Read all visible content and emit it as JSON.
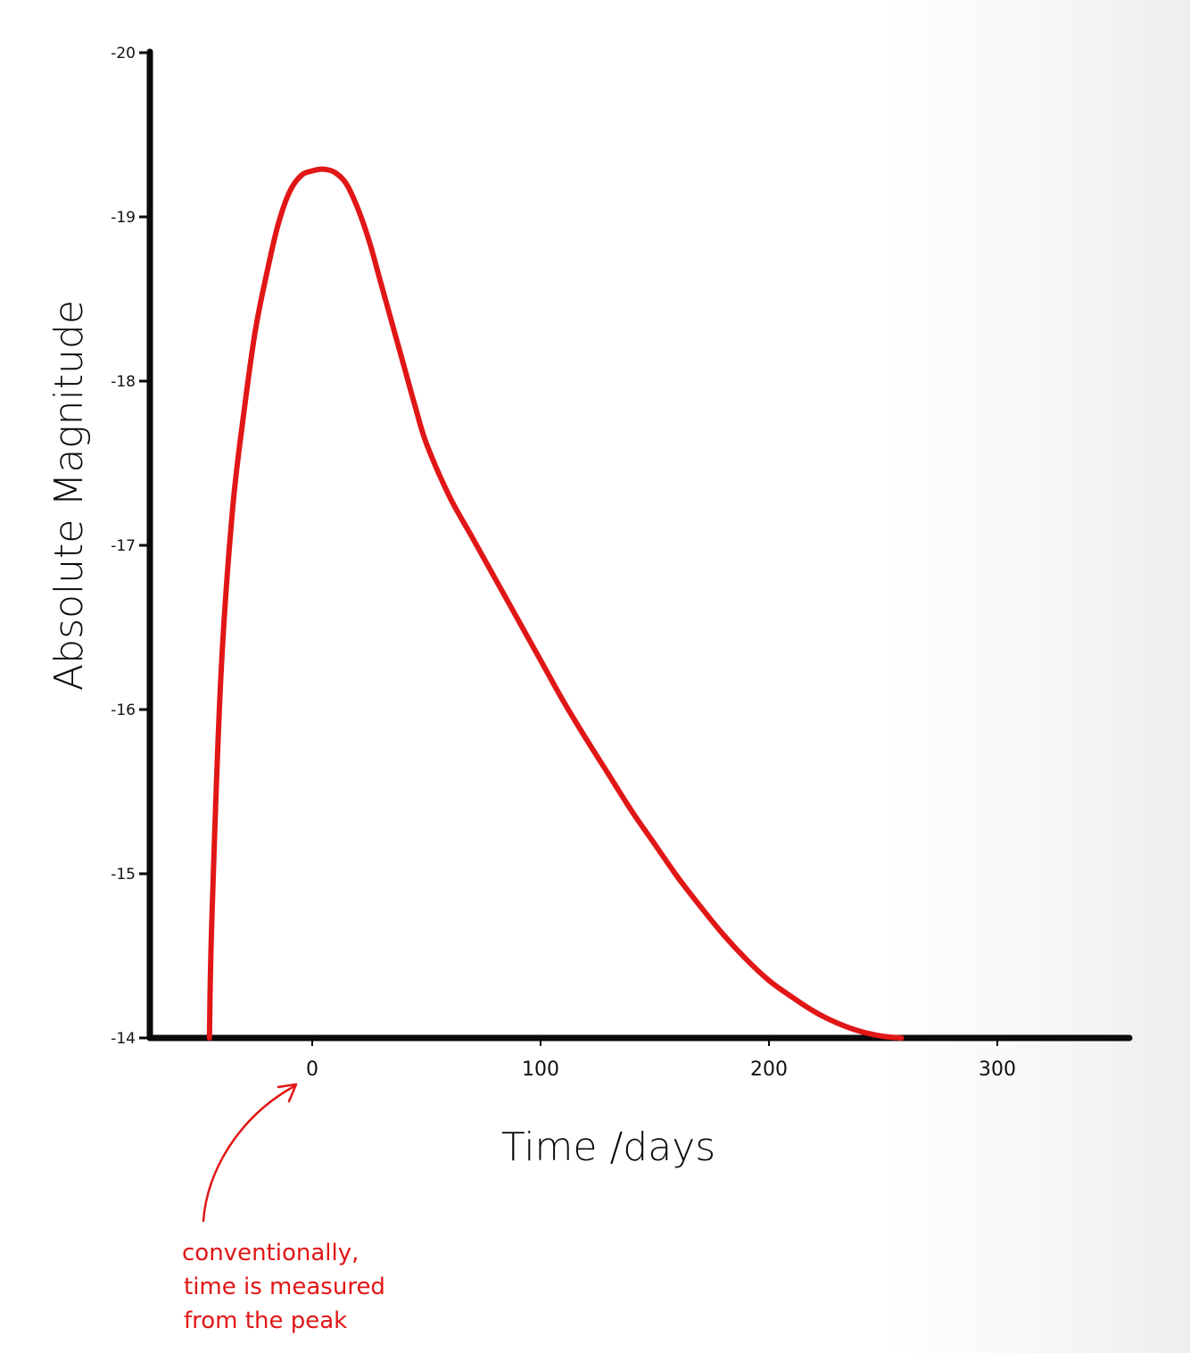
{
  "colors": {
    "curve": "#e11616",
    "axis": "#0a0a0a",
    "annotation": "#e11616",
    "background": "#ffffff"
  },
  "chart_data": {
    "type": "line",
    "title": "",
    "xlabel": "Time /days",
    "ylabel": "Absolute Magnitude",
    "xlim": [
      -70,
      360
    ],
    "ylim": [
      -14,
      -20
    ],
    "y_inverted": true,
    "grid": false,
    "legend": "none",
    "x_ticks": [
      {
        "value": 0,
        "label": "0"
      },
      {
        "value": 100,
        "label": "100"
      },
      {
        "value": 200,
        "label": "200"
      },
      {
        "value": 300,
        "label": "300"
      }
    ],
    "y_ticks": [
      {
        "value": -20,
        "label": "-20"
      },
      {
        "value": -19,
        "label": "-19"
      },
      {
        "value": -18,
        "label": "-18"
      },
      {
        "value": -17,
        "label": "-17"
      },
      {
        "value": -16,
        "label": "-16"
      },
      {
        "value": -15,
        "label": "-15"
      },
      {
        "value": -14,
        "label": "-14"
      }
    ],
    "series": [
      {
        "x": [
          -45,
          -44,
          -40,
          -35,
          -30,
          -25,
          -20,
          -15,
          -10,
          -5,
          0,
          5,
          10,
          15,
          20,
          25,
          30,
          35,
          40,
          45,
          50,
          60,
          70,
          80,
          90,
          100,
          110,
          120,
          130,
          140,
          150,
          160,
          170,
          180,
          190,
          200,
          210,
          220,
          230,
          240,
          250,
          258
        ],
        "y": [
          -14.0,
          -14.7,
          -16.2,
          -17.2,
          -17.8,
          -18.3,
          -18.65,
          -18.95,
          -19.15,
          -19.25,
          -19.28,
          -19.29,
          -19.27,
          -19.2,
          -19.05,
          -18.85,
          -18.6,
          -18.35,
          -18.1,
          -17.85,
          -17.62,
          -17.3,
          -17.05,
          -16.8,
          -16.55,
          -16.3,
          -16.05,
          -15.82,
          -15.6,
          -15.38,
          -15.18,
          -14.98,
          -14.8,
          -14.63,
          -14.48,
          -14.35,
          -14.25,
          -14.16,
          -14.09,
          -14.04,
          -14.01,
          -14.0
        ]
      }
    ],
    "annotations": [
      {
        "lines": [
          "conventionally,",
          "time is measured",
          "from the peak"
        ],
        "points_to_x": 0
      }
    ]
  }
}
